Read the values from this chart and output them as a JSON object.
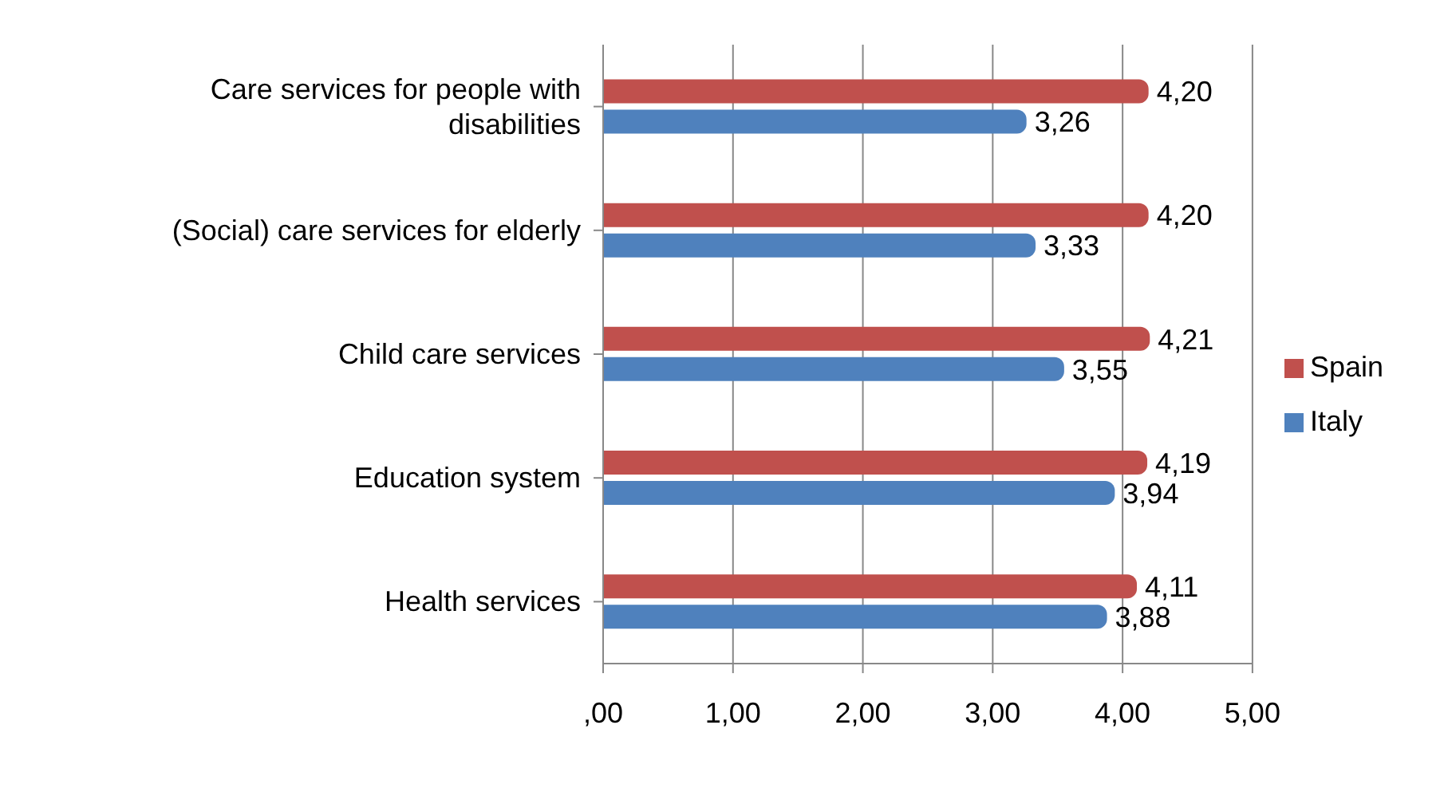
{
  "chart_data": {
    "type": "bar",
    "orientation": "horizontal",
    "categories": [
      "Care services for people with disabilities",
      "(Social) care services for elderly",
      "Child care services",
      "Education system",
      "Health services"
    ],
    "series": [
      {
        "name": "Spain",
        "color": "#c0504d",
        "values": [
          4.2,
          4.2,
          4.21,
          4.19,
          4.11
        ],
        "value_labels": [
          "4,20",
          "4,20",
          "4,21",
          "4,19",
          "4,11"
        ]
      },
      {
        "name": "Italy",
        "color": "#4f81bd",
        "values": [
          3.26,
          3.33,
          3.55,
          3.94,
          3.88
        ],
        "value_labels": [
          "3,26",
          "3,33",
          "3,55",
          "3,94",
          "3,88"
        ]
      }
    ],
    "xlim": [
      0,
      5
    ],
    "xticks": [
      {
        "value": 0,
        "label": ",00"
      },
      {
        "value": 1,
        "label": "1,00"
      },
      {
        "value": 2,
        "label": "2,00"
      },
      {
        "value": 3,
        "label": "3,00"
      },
      {
        "value": 4,
        "label": "4,00"
      },
      {
        "value": 5,
        "label": "5,00"
      }
    ],
    "grid": "x",
    "legend": "right"
  }
}
